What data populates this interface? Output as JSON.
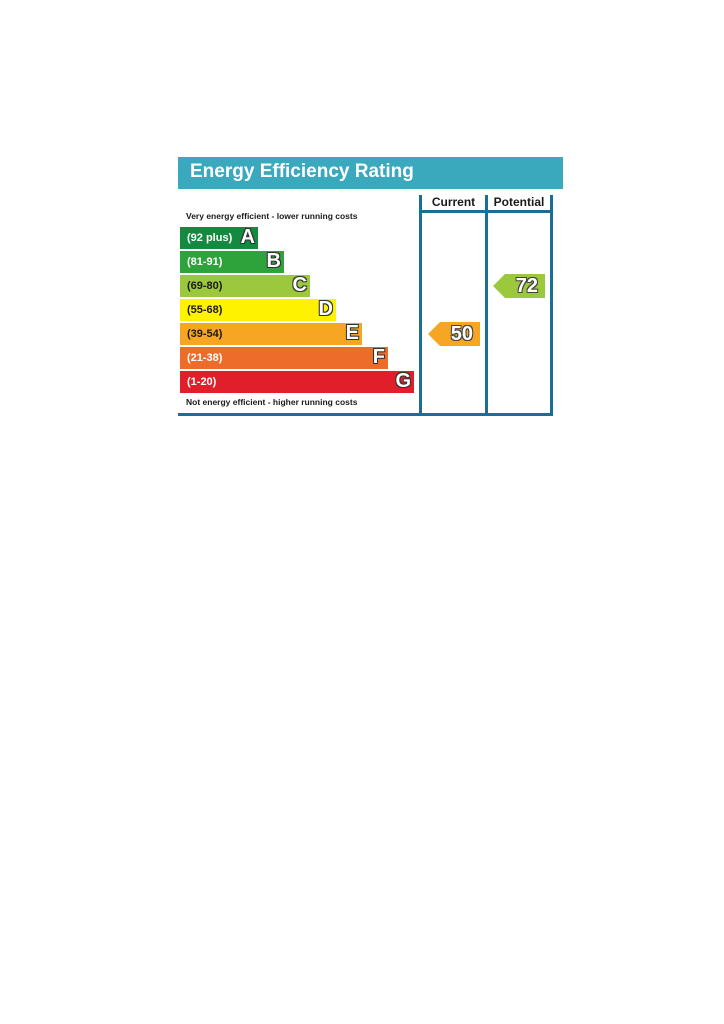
{
  "title": "Energy Efficiency Rating",
  "top_note": "Very energy efficient - lower running costs",
  "bottom_note": "Not energy efficient - higher running costs",
  "columns": {
    "current": "Current",
    "potential": "Potential"
  },
  "chart_data": {
    "type": "bar",
    "title": "Energy Efficiency Rating",
    "bands": [
      {
        "letter": "A",
        "range": "(92 plus)",
        "color": "#138a3f"
      },
      {
        "letter": "B",
        "range": "(81-91)",
        "color": "#2ea23b"
      },
      {
        "letter": "C",
        "range": "(69-80)",
        "color": "#9bc83c"
      },
      {
        "letter": "D",
        "range": "(55-68)",
        "color": "#fff200"
      },
      {
        "letter": "E",
        "range": "(39-54)",
        "color": "#f6a623"
      },
      {
        "letter": "F",
        "range": "(21-38)",
        "color": "#ee6c2a"
      },
      {
        "letter": "G",
        "range": "(1-20)",
        "color": "#e01f2b"
      }
    ],
    "current": {
      "value": "50",
      "band": "E",
      "color": "#f6a623"
    },
    "potential": {
      "value": "72",
      "band": "C",
      "color": "#9bc83c"
    }
  }
}
